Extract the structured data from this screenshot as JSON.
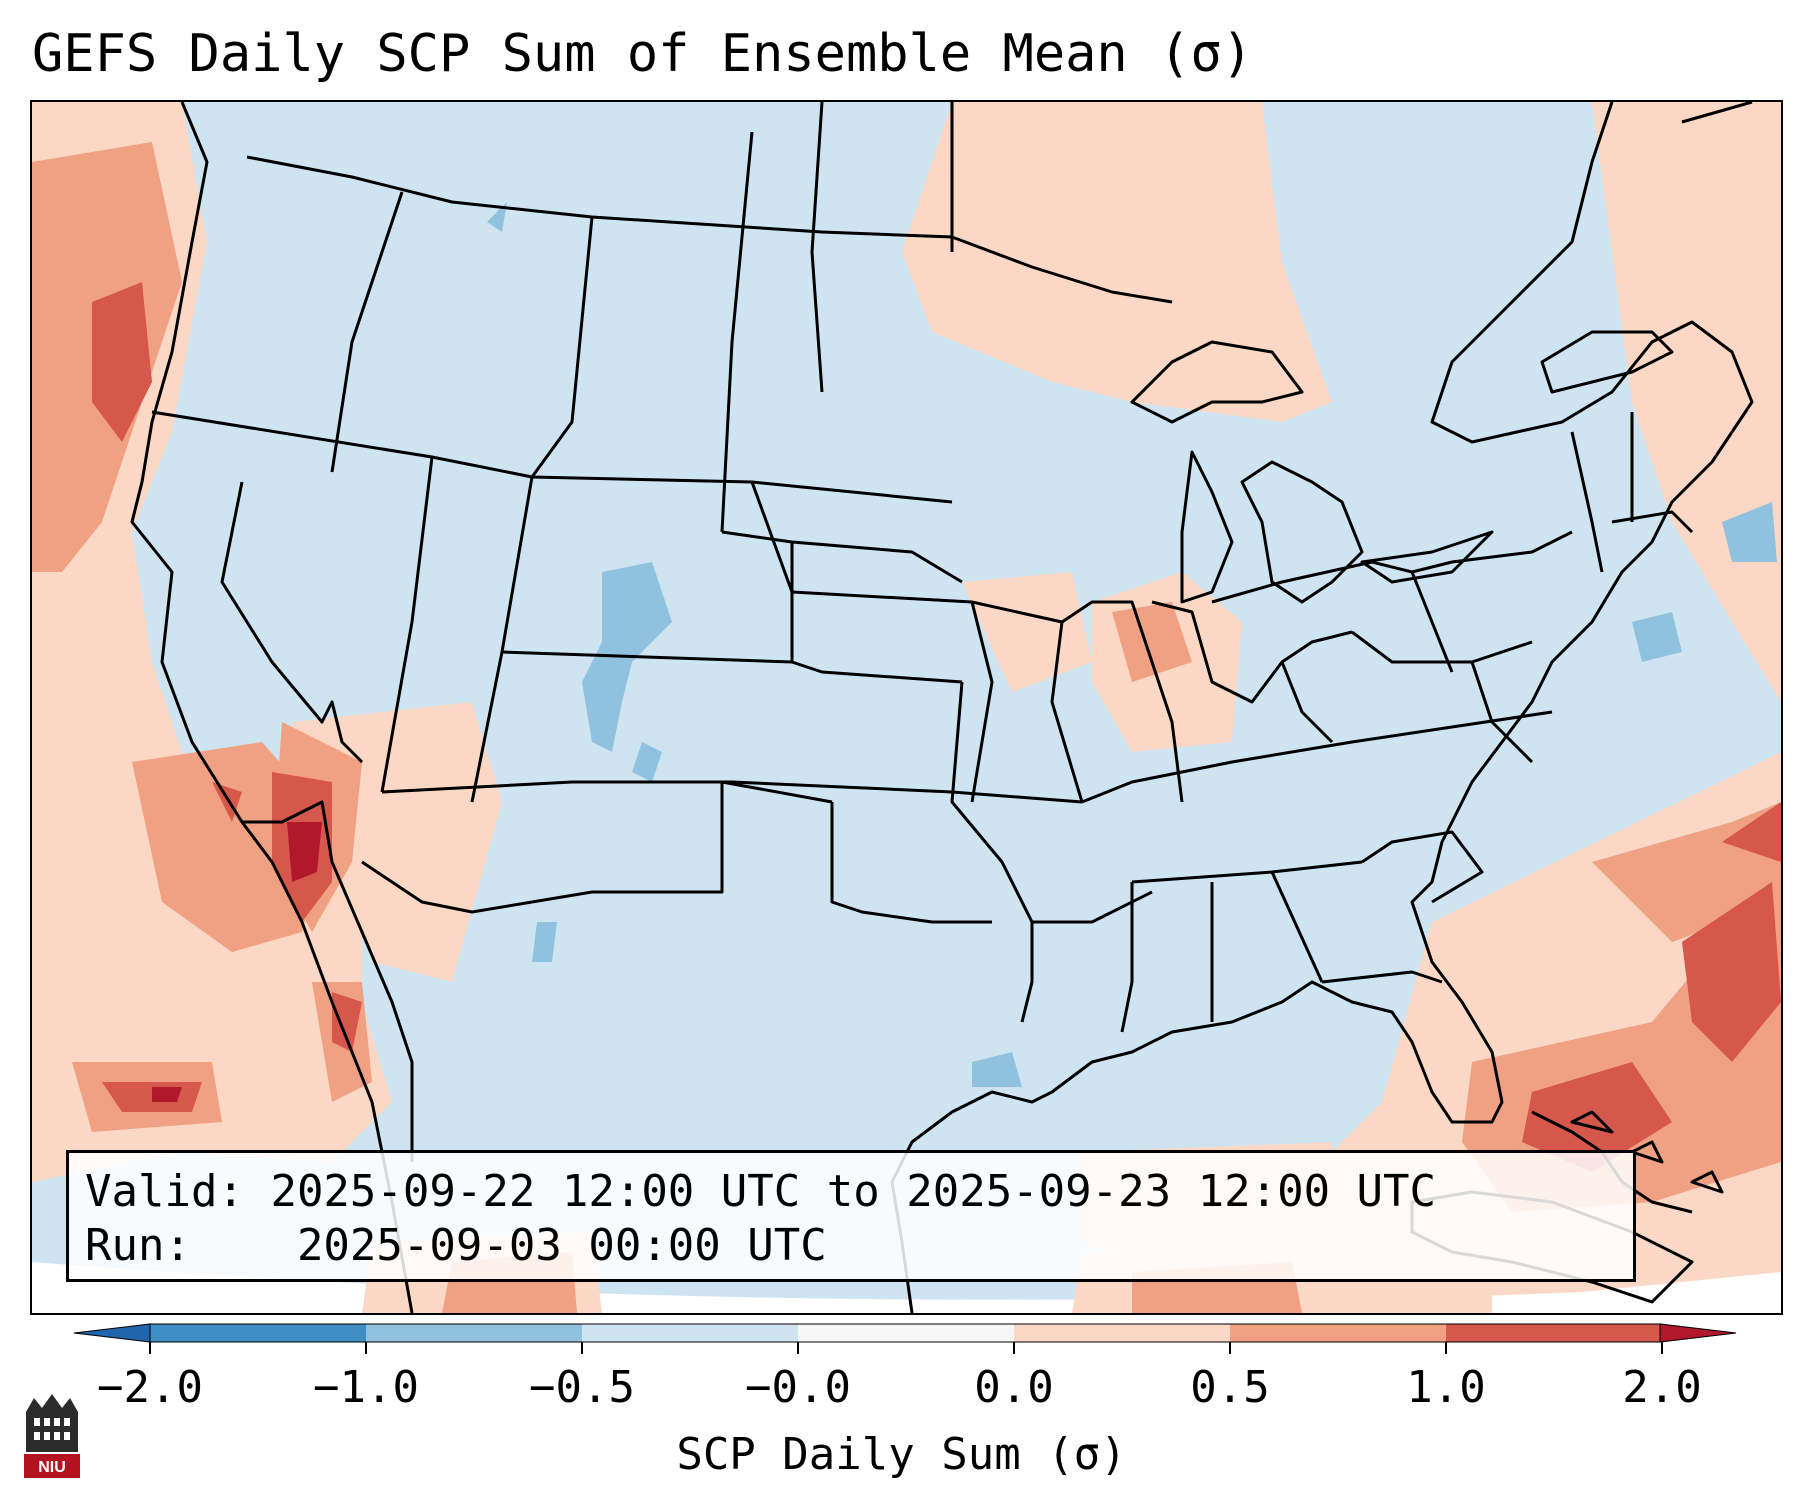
{
  "title": "GEFS Daily SCP Sum of Ensemble Mean (σ)",
  "info": {
    "valid_label": "Valid:",
    "valid_value": "2025-09-22 12:00 UTC to 2025-09-23 12:00 UTC",
    "run_label": "Run:",
    "run_value": "2025-09-03 00:00 UTC"
  },
  "colorbar": {
    "label": "SCP Daily Sum (σ)",
    "ticks": [
      "−2.0",
      "−1.0",
      "−0.5",
      "−0.0",
      "0.0",
      "0.5",
      "1.0",
      "2.0"
    ],
    "bins": [
      {
        "color": "#3f8dc5"
      },
      {
        "color": "#90c2df"
      },
      {
        "color": "#cfe4f1"
      },
      {
        "color": "#f7f7f7"
      },
      {
        "color": "#fbd8c5"
      },
      {
        "color": "#f0a083"
      },
      {
        "color": "#d6574b"
      }
    ],
    "under_color": "#2166ac",
    "over_color": "#b2182b"
  },
  "map": {
    "region": "CONUS",
    "field": "SCP daily sum anomaly (σ)",
    "ocean_background_color": "#cfe4f1",
    "outside_domain_color": "#ffffff",
    "border_color": "#000000"
  },
  "logo": {
    "text": "NIU",
    "color": "#b3121f"
  }
}
